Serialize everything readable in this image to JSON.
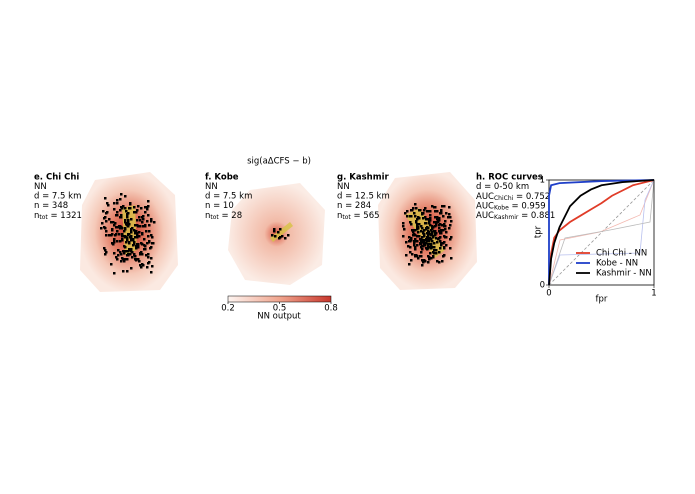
{
  "chart_data": [
    {
      "type": "map",
      "title": "e. Chi Chi",
      "info": [
        "NN",
        "d = 7.5 km",
        "n = 348"
      ],
      "ntot": {
        "base": "n",
        "sub": "tot",
        "text": " = 1321"
      }
    },
    {
      "type": "map",
      "title": "f. Kobe",
      "info": [
        "NN",
        "d = 7.5 km",
        "n = 10"
      ],
      "ntot": {
        "base": "n",
        "sub": "tot",
        "text": " = 28"
      }
    },
    {
      "type": "map",
      "title": "g. Kashmir",
      "info": [
        "NN",
        "d = 12.5 km",
        "n = 284"
      ],
      "ntot": {
        "base": "n",
        "sub": "tot",
        "text": " = 565"
      }
    },
    {
      "type": "colorbar",
      "title": "sig(aΔCFS − b)",
      "label": "NN output",
      "xlim": [
        0.2,
        0.8
      ],
      "xticks": [
        0.2,
        0.5,
        0.8
      ]
    },
    {
      "type": "line",
      "title": "h. ROC curves",
      "info": [
        "d = 0-50 km"
      ],
      "auc": [
        {
          "base": "AUC",
          "sub": "ChiChi",
          "text": " = 0.752"
        },
        {
          "base": "AUC",
          "sub": "Kobe",
          "text": " = 0.959"
        },
        {
          "base": "AUC",
          "sub": "Kashmir",
          "text": " = 0.881"
        }
      ],
      "xlabel": "fpr",
      "ylabel": "tpr",
      "xlim": [
        0,
        1
      ],
      "ylim": [
        0,
        1
      ],
      "xticks": [
        0,
        1
      ],
      "yticks": [
        0,
        1
      ],
      "series": [
        {
          "name": "Chi Chi - NN",
          "color": "#e03c28",
          "x": [
            0,
            0.02,
            0.05,
            0.1,
            0.2,
            0.3,
            0.4,
            0.5,
            0.6,
            0.7,
            0.8,
            1
          ],
          "values": [
            0,
            0.3,
            0.45,
            0.52,
            0.6,
            0.66,
            0.72,
            0.78,
            0.85,
            0.9,
            0.95,
            1
          ]
        },
        {
          "name": "Kobe - NN",
          "color": "#1f3fc8",
          "x": [
            0,
            0,
            0.02,
            0.1,
            0.5,
            1
          ],
          "values": [
            0,
            0.85,
            0.95,
            0.97,
            0.99,
            1
          ]
        },
        {
          "name": "Kashmir - NN",
          "color": "#000000",
          "x": [
            0,
            0.02,
            0.05,
            0.1,
            0.15,
            0.2,
            0.3,
            0.4,
            0.5,
            0.7,
            1
          ],
          "values": [
            0,
            0.25,
            0.4,
            0.55,
            0.65,
            0.75,
            0.85,
            0.91,
            0.95,
            0.98,
            1
          ]
        }
      ]
    }
  ]
}
